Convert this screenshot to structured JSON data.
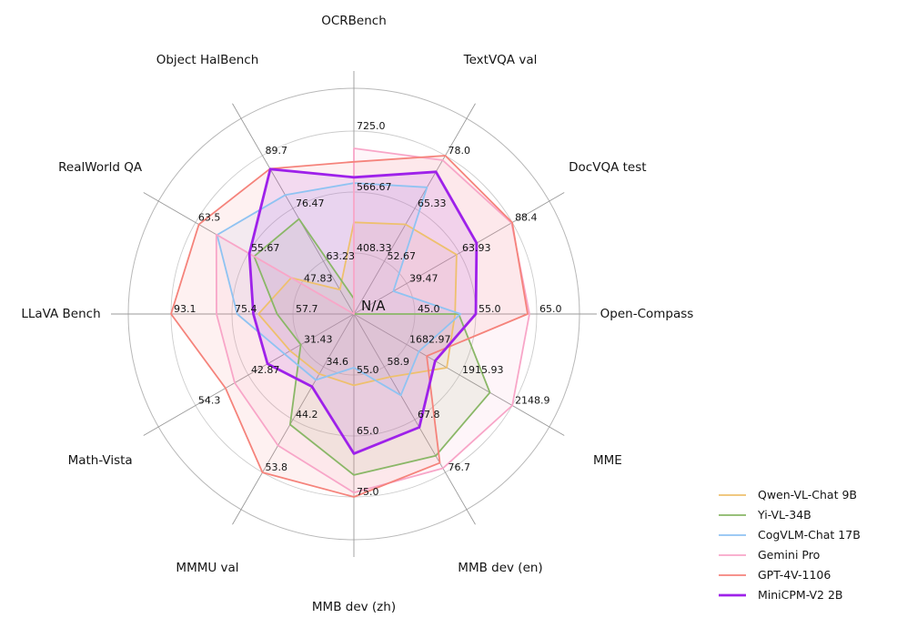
{
  "figure": {
    "background": "#ffffff",
    "center_label": "N/A"
  },
  "chart_data": {
    "type": "radar",
    "title": "",
    "center_label": "N/A",
    "grid": {
      "rings": 3,
      "ring_color": "#cccccc",
      "outer_color": "#b8b8b8",
      "spoke_color": "#9a9a9a",
      "legend_position": "lower right"
    },
    "axes": [
      {
        "label": "OCRBench",
        "min": 250,
        "step": 158.33,
        "ticks": [
          "408.33",
          "566.67",
          "725.0"
        ]
      },
      {
        "label": "TextVQA val",
        "min": 40,
        "step": 12.67,
        "ticks": [
          "52.67",
          "65.33",
          "78.0"
        ]
      },
      {
        "label": "DocVQA test",
        "min": 15,
        "step": 24.47,
        "ticks": [
          "39.47",
          "63.93",
          "88.4"
        ]
      },
      {
        "label": "Open-Compass",
        "min": 35,
        "step": 10,
        "ticks": [
          "45.0",
          "55.0",
          "65.0"
        ]
      },
      {
        "label": "MME",
        "min": 1450,
        "step": 232.97,
        "ticks": [
          "1682.97",
          "1915.93",
          "2148.9"
        ]
      },
      {
        "label": "MMB dev (en)",
        "min": 50,
        "step": 8.9,
        "ticks": [
          "58.9",
          "67.8",
          "76.7"
        ]
      },
      {
        "label": "MMB dev (zh)",
        "min": 45,
        "step": 10,
        "ticks": [
          "55.0",
          "65.0",
          "75.0"
        ]
      },
      {
        "label": "MMMU val",
        "min": 25,
        "step": 9.6,
        "ticks": [
          "34.6",
          "44.2",
          "53.8"
        ]
      },
      {
        "label": "Math-Vista",
        "min": 20,
        "step": 11.43,
        "ticks": [
          "31.43",
          "42.87",
          "54.3"
        ]
      },
      {
        "label": "LLaVA Bench",
        "min": 40,
        "step": 17.7,
        "ticks": [
          "57.7",
          "75.4",
          "93.1"
        ]
      },
      {
        "label": "RealWorld QA",
        "min": 40,
        "step": 7.83,
        "ticks": [
          "47.83",
          "55.67",
          "63.5"
        ]
      },
      {
        "label": "Object HalBench",
        "min": 50,
        "step": 13.23,
        "ticks": [
          "63.23",
          "76.47",
          "89.7"
        ]
      }
    ],
    "series": [
      {
        "name": "Qwen-VL-Chat 9B",
        "color": "#eec06e",
        "line_width": 1.8,
        "values": [
          488,
          61.5,
          62.6,
          51.6,
          1860.0,
          60.6,
          56.7,
          35.9,
          33.8,
          67.7,
          49.3,
          56.1
        ]
      },
      {
        "name": "Yi-VL-34B",
        "color": "#8ab767",
        "line_width": 1.8,
        "values": [
          290,
          null,
          null,
          52.2,
          2050.2,
          73.9,
          71.4,
          45.1,
          31.5,
          62.3,
          54.8,
          73.8
        ]
      },
      {
        "name": "CogVLM-Chat 17B",
        "color": "#8fc3f2",
        "line_width": 1.8,
        "values": [
          590,
          70.4,
          33.3,
          52.5,
          1736.6,
          63.7,
          53.8,
          37.0,
          35.0,
          73.9,
          60.3,
          79.8
        ]
      },
      {
        "name": "Gemini Pro",
        "color": "#f8a6c8",
        "line_width": 1.8,
        "values": [
          680,
          76.9,
          88.1,
          63.8,
          2148.9,
          76.0,
          74.3,
          48.9,
          45.8,
          79.9,
          60.4,
          null
        ]
      },
      {
        "name": "GPT-4V-1106",
        "color": "#f5837b",
        "line_width": 1.8,
        "values": [
          645,
          78.0,
          88.4,
          63.5,
          1771.5,
          75.1,
          75.0,
          53.8,
          47.8,
          93.1,
          63.0,
          86.4
        ]
      },
      {
        "name": "MiniCPM-V2 2B",
        "color": "#9e21ea",
        "line_width": 2.8,
        "values": [
          605,
          74.1,
          71.9,
          55.0,
          1808.6,
          69.1,
          67.9,
          38.2,
          38.7,
          69.2,
          55.5,
          86.3
        ]
      }
    ]
  }
}
